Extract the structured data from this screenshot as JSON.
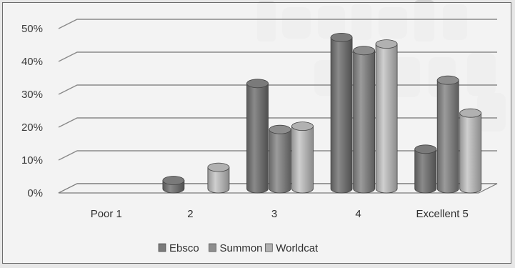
{
  "chart_data": {
    "type": "bar",
    "style": "3d-cylinder",
    "categories": [
      "Poor 1",
      "2",
      "3",
      "4",
      "Excellent 5"
    ],
    "series": [
      {
        "name": "Ebsco",
        "values": [
          0,
          2.5,
          32,
          46,
          12
        ],
        "color": "#7a7a7a"
      },
      {
        "name": "Summon",
        "values": [
          0,
          0,
          18,
          42,
          33
        ],
        "color": "#8d8d8d"
      },
      {
        "name": "Worldcat",
        "values": [
          0,
          6.5,
          19,
          44,
          23
        ],
        "color": "#b1b1b1"
      }
    ],
    "y_ticks": [
      "0%",
      "10%",
      "20%",
      "30%",
      "40%",
      "50%"
    ],
    "ylim": [
      0,
      50
    ],
    "grid": true,
    "legend_position": "bottom"
  }
}
